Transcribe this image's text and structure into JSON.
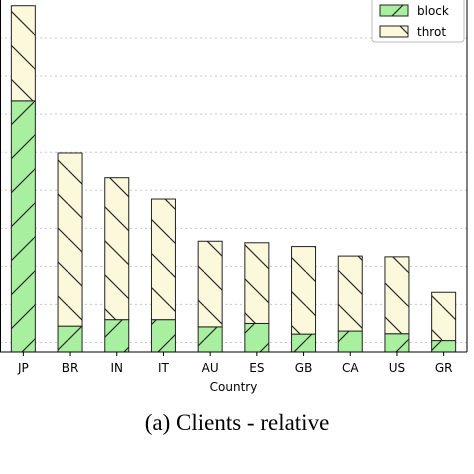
{
  "caption": "(a) Clients - relative",
  "chart_data": {
    "type": "bar",
    "stacked": true,
    "categories": [
      "JP",
      "BR",
      "IN",
      "IT",
      "AU",
      "ES",
      "GB",
      "CA",
      "US",
      "GR"
    ],
    "series": [
      {
        "name": "block",
        "values": [
          0.66,
          0.068,
          0.085,
          0.085,
          0.066,
          0.075,
          0.047,
          0.055,
          0.048,
          0.03
        ],
        "color": "#a8f0a0",
        "hatch": "/"
      },
      {
        "name": "throt",
        "values": [
          0.25,
          0.455,
          0.373,
          0.317,
          0.225,
          0.212,
          0.23,
          0.197,
          0.202,
          0.127
        ],
        "color": "#fcf8dc",
        "hatch": "\\"
      }
    ],
    "xlabel": "Country",
    "ylabel": "",
    "ylim": [
      0,
      0.925
    ],
    "grid": "horizontal-dotted",
    "legend": "top-right"
  }
}
